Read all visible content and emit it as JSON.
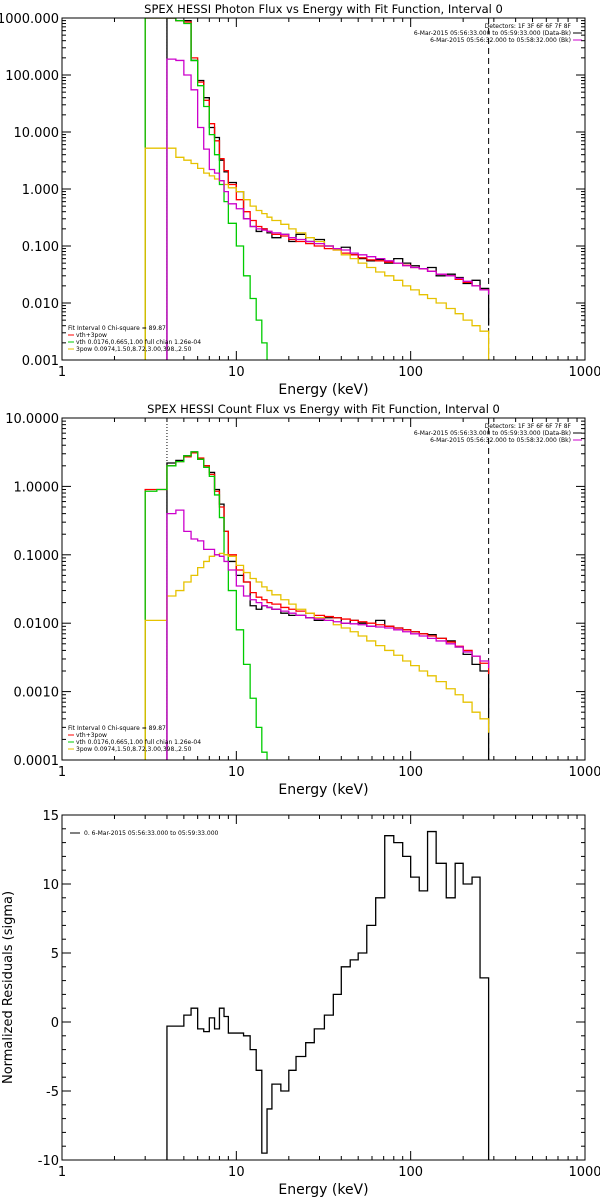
{
  "chart_data": [
    {
      "type": "line",
      "title": "SPEX HESSI Photon Flux vs Energy with Fit Function, Interval 0",
      "xlabel": "Energy (keV)",
      "ylabel": "",
      "xscale": "log",
      "yscale": "log",
      "xlim": [
        1,
        1000
      ],
      "ylim": [
        0.001,
        1000
      ],
      "xticks": [
        "1",
        "10",
        "100",
        "1000"
      ],
      "yticks": [
        "0.001",
        "0.010",
        "0.100",
        "1.000",
        "10.000",
        "100.000",
        "1000.000"
      ],
      "ytick_values": [
        0.001,
        0.01,
        0.1,
        1,
        10,
        100,
        1000
      ],
      "info_text": [
        "Detectors: 1F 3F 6F 6F 7F 8F",
        "6-Mar-2015 05:56:33.000 to 05:59:33.000 (Data-Bk)",
        "6-Mar-2015 05:56:32.000 to 05:58:32.000 (Bk)"
      ],
      "fit_text": [
        "Fit Interval 0   Chi-square = 89.87",
        "vth+3pow",
        "vth 0.0176,0.665,1.00  full chian 1.26e-04",
        "3pow 0.0974,1.50,8.72,3.00,398.,2.50"
      ],
      "dashed_line_x": 280,
      "series": [
        {
          "name": "Data-Bk",
          "color": "#000000",
          "x": [
            4,
            4.5,
            5,
            5.5,
            6,
            6.5,
            7,
            7.5,
            8,
            8.5,
            9,
            10,
            11,
            12,
            13,
            14,
            15,
            16,
            18,
            20,
            22,
            25,
            28,
            32,
            36,
            40,
            45,
            50,
            56,
            63,
            71,
            80,
            90,
            100,
            112,
            125,
            140,
            160,
            180,
            200,
            225,
            250,
            280
          ],
          "y": [
            1000,
            900,
            900,
            180,
            80,
            40,
            12,
            8,
            3.2,
            2,
            1.3,
            0.9,
            0.3,
            0.22,
            0.18,
            0.2,
            0.17,
            0.14,
            0.16,
            0.12,
            0.16,
            0.12,
            0.13,
            0.1,
            0.09,
            0.095,
            0.07,
            0.06,
            0.055,
            0.058,
            0.05,
            0.06,
            0.05,
            0.045,
            0.04,
            0.042,
            0.03,
            0.032,
            0.028,
            0.022,
            0.025,
            0.018,
            0.004
          ]
        },
        {
          "name": "vth+3pow",
          "color": "#ff0000",
          "x": [
            3,
            3.5,
            4,
            4.5,
            5,
            5.5,
            6,
            6.5,
            7,
            7.5,
            8,
            8.5,
            9,
            10,
            11,
            12,
            13,
            14,
            15,
            16,
            18,
            20,
            22,
            25,
            28,
            32,
            36,
            40,
            45,
            50,
            56,
            63,
            71,
            80,
            90,
            100,
            112,
            125,
            140,
            160,
            180,
            200,
            225,
            250,
            280
          ],
          "y": [
            1000,
            1000,
            1000,
            900,
            850,
            200,
            75,
            36,
            14,
            7,
            3.4,
            2.1,
            1.2,
            0.65,
            0.4,
            0.28,
            0.22,
            0.2,
            0.18,
            0.16,
            0.15,
            0.13,
            0.12,
            0.11,
            0.1,
            0.09,
            0.085,
            0.075,
            0.07,
            0.062,
            0.057,
            0.055,
            0.052,
            0.05,
            0.046,
            0.042,
            0.04,
            0.036,
            0.032,
            0.03,
            0.026,
            0.023,
            0.02,
            0.017,
            0.015
          ]
        },
        {
          "name": "vth",
          "color": "#00cc00",
          "x": [
            3,
            3.5,
            4,
            4.5,
            5,
            5.5,
            6,
            6.5,
            7,
            7.5,
            8,
            8.5,
            9,
            10,
            11,
            12,
            13,
            14,
            15
          ],
          "y": [
            1000,
            1000,
            1000,
            900,
            800,
            180,
            65,
            28,
            9,
            4,
            1.2,
            0.6,
            0.25,
            0.1,
            0.03,
            0.012,
            0.005,
            0.002,
            0.001
          ]
        },
        {
          "name": "3pow",
          "color": "#e6c200",
          "x": [
            3,
            3.5,
            4,
            4.5,
            5,
            5.5,
            6,
            6.5,
            7,
            7.5,
            8,
            8.5,
            9,
            10,
            11,
            12,
            13,
            14,
            15,
            16,
            18,
            20,
            22,
            25,
            28,
            32,
            36,
            40,
            45,
            50,
            56,
            63,
            71,
            80,
            90,
            100,
            112,
            125,
            140,
            160,
            180,
            200,
            225,
            250,
            280
          ],
          "y": [
            5.2,
            5.2,
            5.2,
            3.6,
            3.2,
            2.8,
            2.3,
            1.9,
            1.7,
            1.5,
            1.4,
            1.2,
            1.05,
            0.9,
            0.65,
            0.5,
            0.42,
            0.37,
            0.32,
            0.28,
            0.24,
            0.2,
            0.17,
            0.14,
            0.12,
            0.1,
            0.085,
            0.07,
            0.06,
            0.05,
            0.042,
            0.035,
            0.03,
            0.025,
            0.02,
            0.017,
            0.014,
            0.012,
            0.01,
            0.008,
            0.0065,
            0.005,
            0.004,
            0.0032,
            0.001
          ]
        },
        {
          "name": "Bk",
          "color": "#cc00cc",
          "x": [
            4,
            4.5,
            5,
            5.5,
            6,
            6.5,
            7,
            7.5,
            8,
            8.5,
            9,
            10,
            11,
            12,
            13,
            14,
            15,
            16,
            18,
            20,
            22,
            25,
            28,
            32,
            36,
            40,
            45,
            50,
            56,
            63,
            71,
            80,
            90,
            100,
            112,
            125,
            140,
            160,
            180,
            200,
            225,
            250,
            280
          ],
          "y": [
            190,
            180,
            100,
            55,
            12,
            5,
            2.2,
            1.9,
            1.4,
            0.9,
            0.55,
            0.45,
            0.3,
            0.22,
            0.2,
            0.19,
            0.18,
            0.17,
            0.16,
            0.14,
            0.13,
            0.12,
            0.11,
            0.1,
            0.09,
            0.085,
            0.075,
            0.07,
            0.065,
            0.06,
            0.055,
            0.05,
            0.045,
            0.042,
            0.04,
            0.036,
            0.032,
            0.03,
            0.027,
            0.024,
            0.02,
            0.017,
            0.014
          ]
        }
      ]
    },
    {
      "type": "line",
      "title": "SPEX HESSI Count Flux vs Energy with Fit Function, Interval 0",
      "xlabel": "Energy (keV)",
      "ylabel": "",
      "xscale": "log",
      "yscale": "log",
      "xlim": [
        1,
        1000
      ],
      "ylim": [
        0.0001,
        10
      ],
      "xticks": [
        "1",
        "10",
        "100",
        "1000"
      ],
      "yticks": [
        "0.0001",
        "0.0010",
        "0.0100",
        "0.1000",
        "1.0000",
        "10.0000"
      ],
      "ytick_values": [
        0.0001,
        0.001,
        0.01,
        0.1,
        1,
        10
      ],
      "info_text": [
        "Detectors: 1F 3F 6F 6F 7F 8F",
        "6-Mar-2015 05:56:33.000 to 05:59:33.000 (Data-Bk)",
        "6-Mar-2015 05:56:32.000 to 05:58:32.000 (Bk)"
      ],
      "fit_text": [
        "Fit Interval 0   Chi-square = 89.87",
        "vth+3pow",
        "vth 0.0176,0.665,1.00  full chian 1.26e-04",
        "3pow 0.0974,1.50,8.72,3.00,398.,2.50"
      ],
      "dashed_line_x": 280,
      "series": [
        {
          "name": "Data-Bk",
          "color": "#000000",
          "x": [
            4,
            4.5,
            5,
            5.5,
            6,
            6.5,
            7,
            7.5,
            8,
            8.5,
            9,
            10,
            11,
            12,
            13,
            14,
            15,
            16,
            18,
            20,
            22,
            25,
            28,
            32,
            36,
            40,
            45,
            50,
            56,
            63,
            71,
            80,
            90,
            100,
            112,
            125,
            140,
            160,
            180,
            200,
            225,
            250,
            280
          ],
          "y": [
            2.2,
            2.4,
            2.8,
            3.2,
            2.5,
            2.0,
            1.6,
            0.9,
            0.55,
            0.22,
            0.08,
            0.05,
            0.04,
            0.018,
            0.016,
            0.018,
            0.017,
            0.016,
            0.014,
            0.013,
            0.013,
            0.012,
            0.011,
            0.012,
            0.012,
            0.01,
            0.011,
            0.01,
            0.009,
            0.011,
            0.009,
            0.0085,
            0.008,
            0.0075,
            0.007,
            0.0068,
            0.006,
            0.0055,
            0.0045,
            0.0035,
            0.0025,
            0.002,
            0.0001
          ]
        },
        {
          "name": "vth+3pow",
          "color": "#ff0000",
          "x": [
            3,
            3.5,
            4,
            4.5,
            5,
            5.5,
            6,
            6.5,
            7,
            7.5,
            8,
            8.5,
            9,
            10,
            11,
            12,
            13,
            14,
            15,
            16,
            18,
            20,
            22,
            25,
            28,
            32,
            36,
            40,
            45,
            50,
            56,
            63,
            71,
            80,
            90,
            100,
            112,
            125,
            140,
            160,
            180,
            200,
            225,
            250,
            280
          ],
          "y": [
            0.9,
            0.9,
            2.0,
            2.3,
            2.7,
            3.1,
            2.6,
            2.0,
            1.5,
            0.85,
            0.5,
            0.22,
            0.1,
            0.06,
            0.04,
            0.028,
            0.024,
            0.022,
            0.02,
            0.019,
            0.017,
            0.016,
            0.015,
            0.014,
            0.013,
            0.0125,
            0.012,
            0.0115,
            0.011,
            0.0105,
            0.01,
            0.0095,
            0.009,
            0.0085,
            0.008,
            0.0075,
            0.007,
            0.0065,
            0.006,
            0.0053,
            0.0046,
            0.004,
            0.0033,
            0.0026,
            0.0018
          ]
        },
        {
          "name": "vth",
          "color": "#00cc00",
          "x": [
            3,
            3.5,
            4,
            4.5,
            5,
            5.5,
            6,
            6.5,
            7,
            7.5,
            8,
            8.5,
            9,
            10,
            11,
            12,
            13,
            14,
            15
          ],
          "y": [
            0.85,
            0.9,
            2.0,
            2.3,
            2.8,
            3.2,
            2.5,
            1.9,
            1.4,
            0.75,
            0.35,
            0.1,
            0.03,
            0.008,
            0.0025,
            0.0008,
            0.0003,
            0.00013,
            0.0001
          ]
        },
        {
          "name": "3pow",
          "color": "#e6c200",
          "x": [
            3,
            3.5,
            4,
            4.5,
            5,
            5.5,
            6,
            6.5,
            7,
            7.5,
            8,
            8.5,
            9,
            10,
            11,
            12,
            13,
            14,
            15,
            16,
            18,
            20,
            22,
            25,
            28,
            32,
            36,
            40,
            45,
            50,
            56,
            63,
            71,
            80,
            90,
            100,
            112,
            125,
            140,
            160,
            180,
            200,
            225,
            250,
            280
          ],
          "y": [
            0.011,
            0.011,
            0.025,
            0.03,
            0.04,
            0.05,
            0.065,
            0.08,
            0.095,
            0.1,
            0.105,
            0.1,
            0.095,
            0.07,
            0.055,
            0.045,
            0.04,
            0.034,
            0.03,
            0.026,
            0.022,
            0.019,
            0.016,
            0.014,
            0.012,
            0.011,
            0.0095,
            0.0085,
            0.0075,
            0.0065,
            0.0055,
            0.0047,
            0.004,
            0.0034,
            0.0028,
            0.0024,
            0.002,
            0.0017,
            0.0014,
            0.0011,
            0.0009,
            0.0007,
            0.0005,
            0.0004,
            0.00025
          ]
        },
        {
          "name": "Bk",
          "color": "#cc00cc",
          "x": [
            4,
            4.5,
            5,
            5.5,
            6,
            6.5,
            7,
            7.5,
            8,
            8.5,
            9,
            10,
            11,
            12,
            13,
            14,
            15,
            16,
            18,
            20,
            22,
            25,
            28,
            32,
            36,
            40,
            45,
            50,
            56,
            63,
            71,
            80,
            90,
            100,
            112,
            125,
            140,
            160,
            180,
            200,
            225,
            250,
            280
          ],
          "y": [
            0.4,
            0.45,
            0.22,
            0.17,
            0.16,
            0.12,
            0.12,
            0.1,
            0.095,
            0.08,
            0.06,
            0.035,
            0.025,
            0.022,
            0.02,
            0.018,
            0.017,
            0.016,
            0.015,
            0.014,
            0.013,
            0.012,
            0.0115,
            0.011,
            0.0105,
            0.01,
            0.0098,
            0.0095,
            0.009,
            0.0088,
            0.0085,
            0.008,
            0.0075,
            0.007,
            0.0065,
            0.006,
            0.0055,
            0.005,
            0.0045,
            0.0038,
            0.0033,
            0.0028,
            0.0022
          ]
        }
      ]
    },
    {
      "type": "line",
      "title": "",
      "xlabel": "Energy (keV)",
      "ylabel": "Normalized Residuals (sigma)",
      "xscale": "log",
      "yscale": "linear",
      "xlim": [
        1,
        1000
      ],
      "ylim": [
        -10,
        15
      ],
      "xticks": [
        "1",
        "10",
        "100",
        "1000"
      ],
      "yticks": [
        "-10",
        "-5",
        "0",
        "5",
        "10",
        "15"
      ],
      "ytick_values": [
        -10,
        -5,
        0,
        5,
        10,
        15
      ],
      "legend": "0.  6-Mar-2015 05:56:33.000 to 05:59:33.000",
      "series": [
        {
          "name": "0.",
          "color": "#000000",
          "x": [
            4,
            4.5,
            5,
            5.5,
            6,
            6.5,
            7,
            7.5,
            8,
            8.5,
            9,
            10,
            11,
            12,
            13,
            14,
            15,
            16,
            18,
            20,
            22,
            25,
            28,
            32,
            36,
            40,
            45,
            50,
            56,
            63,
            71,
            80,
            90,
            100,
            112,
            125,
            140,
            160,
            180,
            200,
            225,
            250,
            280
          ],
          "y": [
            -0.3,
            -0.3,
            0.5,
            1.0,
            -0.5,
            -0.7,
            0.3,
            -0.5,
            1.0,
            0.4,
            -0.8,
            -0.8,
            -1.0,
            -2.0,
            -3.5,
            -9.5,
            -6.3,
            -4.5,
            -5.0,
            -3.5,
            -2.5,
            -1.5,
            -0.5,
            0.5,
            2.0,
            4.0,
            4.5,
            5.0,
            7.0,
            9.0,
            13.5,
            13.0,
            12.0,
            10.5,
            9.5,
            13.8,
            11.5,
            9.0,
            11.5,
            10.0,
            10.5,
            3.2,
            -10
          ]
        }
      ]
    }
  ]
}
